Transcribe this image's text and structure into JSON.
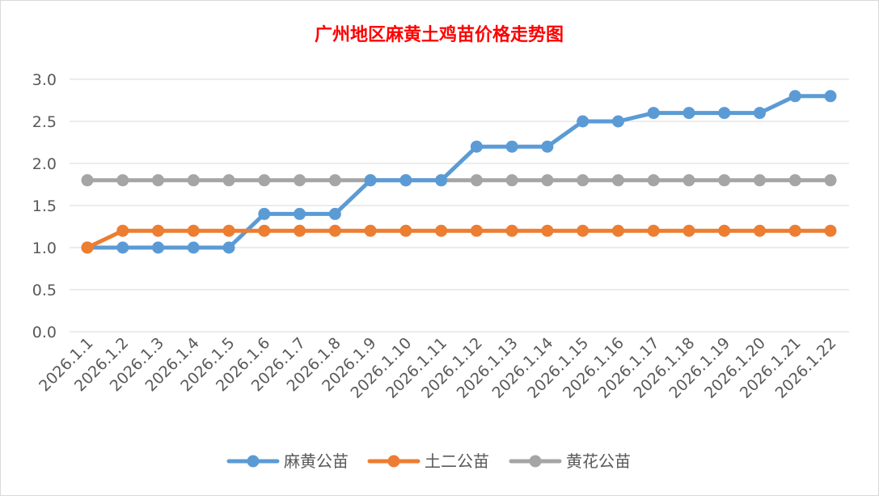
{
  "chart_data": {
    "type": "line",
    "title": "广州地区麻黄土鸡苗价格走势图",
    "title_color": "#ff0000",
    "xlabel": "",
    "ylabel": "",
    "categories": [
      "2026.1.1",
      "2026.1.2",
      "2026.1.3",
      "2026.1.4",
      "2026.1.5",
      "2026.1.6",
      "2026.1.7",
      "2026.1.8",
      "2026.1.9",
      "2026.1.10",
      "2026.1.11",
      "2026.1.12",
      "2026.1.13",
      "2026.1.14",
      "2026.1.15",
      "2026.1.16",
      "2026.1.17",
      "2026.1.18",
      "2026.1.19",
      "2026.1.20",
      "2026.1.21",
      "2026.1.22"
    ],
    "ylim": [
      0,
      3.0
    ],
    "yticks": [
      "0.0",
      "0.5",
      "1.0",
      "1.5",
      "2.0",
      "2.5",
      "3.0"
    ],
    "grid": true,
    "legend_position": "bottom",
    "series": [
      {
        "name": "麻黄公苗",
        "color": "#5b9bd5",
        "values": [
          1.0,
          1.0,
          1.0,
          1.0,
          1.0,
          1.4,
          1.4,
          1.4,
          1.8,
          1.8,
          1.8,
          2.2,
          2.2,
          2.2,
          2.5,
          2.5,
          2.6,
          2.6,
          2.6,
          2.6,
          2.8,
          2.8
        ]
      },
      {
        "name": "土二公苗",
        "color": "#ed7d31",
        "values": [
          1.0,
          1.2,
          1.2,
          1.2,
          1.2,
          1.2,
          1.2,
          1.2,
          1.2,
          1.2,
          1.2,
          1.2,
          1.2,
          1.2,
          1.2,
          1.2,
          1.2,
          1.2,
          1.2,
          1.2,
          1.2,
          1.2
        ]
      },
      {
        "name": "黄花公苗",
        "color": "#a5a5a5",
        "values": [
          1.8,
          1.8,
          1.8,
          1.8,
          1.8,
          1.8,
          1.8,
          1.8,
          1.8,
          1.8,
          1.8,
          1.8,
          1.8,
          1.8,
          1.8,
          1.8,
          1.8,
          1.8,
          1.8,
          1.8,
          1.8,
          1.8
        ]
      }
    ]
  },
  "colors": {
    "gridline": "#d9d9d9",
    "axis_text": "#595959",
    "chart_border": "#d9d9d9"
  }
}
